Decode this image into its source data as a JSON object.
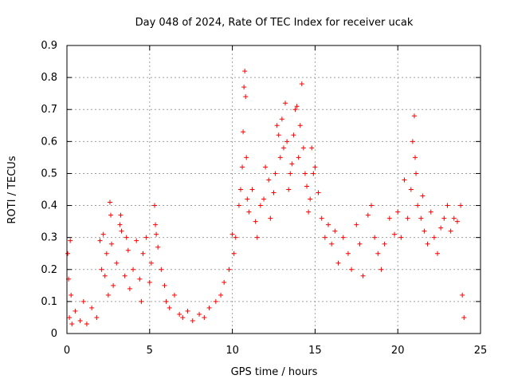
{
  "chart_data": {
    "type": "scatter",
    "title": "Day 048 of 2024, Rate Of TEC Index for receiver ucak",
    "xlabel": "GPS time / hours",
    "ylabel": "ROTI / TECUs",
    "xlim": [
      0,
      25
    ],
    "ylim": [
      0,
      0.9
    ],
    "xticks": [
      0,
      5,
      10,
      15,
      20,
      25
    ],
    "yticks": [
      0,
      0.1,
      0.2,
      0.3,
      0.4,
      0.5,
      0.6,
      0.7,
      0.8,
      0.9
    ],
    "grid": true,
    "marker": "+",
    "color": "#ff0000",
    "series": [
      {
        "points": [
          [
            0.05,
            0.25
          ],
          [
            0.1,
            0.17
          ],
          [
            0.15,
            0.05
          ],
          [
            0.2,
            0.29
          ],
          [
            0.25,
            0.12
          ],
          [
            0.3,
            0.03
          ],
          [
            0.5,
            0.07
          ],
          [
            0.8,
            0.04
          ],
          [
            1.0,
            0.1
          ],
          [
            1.2,
            0.03
          ],
          [
            1.5,
            0.08
          ],
          [
            1.8,
            0.05
          ],
          [
            2.0,
            0.29
          ],
          [
            2.1,
            0.2
          ],
          [
            2.2,
            0.31
          ],
          [
            2.3,
            0.18
          ],
          [
            2.4,
            0.25
          ],
          [
            2.5,
            0.12
          ],
          [
            2.6,
            0.41
          ],
          [
            2.65,
            0.37
          ],
          [
            2.7,
            0.28
          ],
          [
            2.8,
            0.15
          ],
          [
            3.0,
            0.22
          ],
          [
            3.2,
            0.34
          ],
          [
            3.25,
            0.37
          ],
          [
            3.3,
            0.32
          ],
          [
            3.5,
            0.18
          ],
          [
            3.6,
            0.3
          ],
          [
            3.7,
            0.26
          ],
          [
            3.8,
            0.14
          ],
          [
            4.0,
            0.2
          ],
          [
            4.2,
            0.29
          ],
          [
            4.4,
            0.17
          ],
          [
            4.5,
            0.1
          ],
          [
            4.6,
            0.25
          ],
          [
            4.8,
            0.3
          ],
          [
            5.0,
            0.16
          ],
          [
            5.1,
            0.22
          ],
          [
            5.3,
            0.4
          ],
          [
            5.35,
            0.34
          ],
          [
            5.4,
            0.31
          ],
          [
            5.5,
            0.27
          ],
          [
            5.7,
            0.2
          ],
          [
            5.9,
            0.15
          ],
          [
            6.0,
            0.1
          ],
          [
            6.2,
            0.08
          ],
          [
            6.5,
            0.12
          ],
          [
            6.8,
            0.06
          ],
          [
            7.0,
            0.05
          ],
          [
            7.3,
            0.07
          ],
          [
            7.6,
            0.04
          ],
          [
            8.0,
            0.06
          ],
          [
            8.3,
            0.05
          ],
          [
            8.6,
            0.08
          ],
          [
            9.0,
            0.1
          ],
          [
            9.3,
            0.12
          ],
          [
            9.5,
            0.16
          ],
          [
            9.8,
            0.2
          ],
          [
            10.0,
            0.31
          ],
          [
            10.1,
            0.25
          ],
          [
            10.2,
            0.3
          ],
          [
            10.4,
            0.4
          ],
          [
            10.5,
            0.45
          ],
          [
            10.6,
            0.52
          ],
          [
            10.65,
            0.63
          ],
          [
            10.7,
            0.77
          ],
          [
            10.75,
            0.82
          ],
          [
            10.8,
            0.74
          ],
          [
            10.85,
            0.55
          ],
          [
            10.9,
            0.42
          ],
          [
            11.0,
            0.38
          ],
          [
            11.2,
            0.45
          ],
          [
            11.4,
            0.35
          ],
          [
            11.5,
            0.3
          ],
          [
            11.7,
            0.4
          ],
          [
            11.9,
            0.42
          ],
          [
            12.0,
            0.52
          ],
          [
            12.2,
            0.48
          ],
          [
            12.3,
            0.36
          ],
          [
            12.5,
            0.44
          ],
          [
            12.6,
            0.5
          ],
          [
            12.7,
            0.65
          ],
          [
            12.8,
            0.62
          ],
          [
            12.9,
            0.55
          ],
          [
            13.0,
            0.67
          ],
          [
            13.1,
            0.58
          ],
          [
            13.2,
            0.72
          ],
          [
            13.3,
            0.6
          ],
          [
            13.4,
            0.45
          ],
          [
            13.5,
            0.5
          ],
          [
            13.6,
            0.53
          ],
          [
            13.7,
            0.62
          ],
          [
            13.8,
            0.7
          ],
          [
            13.9,
            0.71
          ],
          [
            14.0,
            0.55
          ],
          [
            14.1,
            0.65
          ],
          [
            14.2,
            0.78
          ],
          [
            14.3,
            0.58
          ],
          [
            14.4,
            0.5
          ],
          [
            14.5,
            0.46
          ],
          [
            14.6,
            0.38
          ],
          [
            14.7,
            0.42
          ],
          [
            14.8,
            0.58
          ],
          [
            14.9,
            0.5
          ],
          [
            15.0,
            0.52
          ],
          [
            15.2,
            0.44
          ],
          [
            15.4,
            0.36
          ],
          [
            15.6,
            0.3
          ],
          [
            15.8,
            0.34
          ],
          [
            16.0,
            0.28
          ],
          [
            16.2,
            0.32
          ],
          [
            16.4,
            0.22
          ],
          [
            16.7,
            0.3
          ],
          [
            17.0,
            0.25
          ],
          [
            17.2,
            0.2
          ],
          [
            17.5,
            0.34
          ],
          [
            17.7,
            0.28
          ],
          [
            17.9,
            0.18
          ],
          [
            18.2,
            0.37
          ],
          [
            18.4,
            0.4
          ],
          [
            18.6,
            0.3
          ],
          [
            18.8,
            0.25
          ],
          [
            19.0,
            0.2
          ],
          [
            19.2,
            0.28
          ],
          [
            19.5,
            0.36
          ],
          [
            19.8,
            0.31
          ],
          [
            20.0,
            0.38
          ],
          [
            20.2,
            0.3
          ],
          [
            20.4,
            0.48
          ],
          [
            20.6,
            0.36
          ],
          [
            20.8,
            0.45
          ],
          [
            20.9,
            0.6
          ],
          [
            21.0,
            0.68
          ],
          [
            21.05,
            0.55
          ],
          [
            21.1,
            0.5
          ],
          [
            21.2,
            0.4
          ],
          [
            21.4,
            0.36
          ],
          [
            21.5,
            0.43
          ],
          [
            21.6,
            0.32
          ],
          [
            21.8,
            0.28
          ],
          [
            22.0,
            0.38
          ],
          [
            22.2,
            0.3
          ],
          [
            22.4,
            0.25
          ],
          [
            22.6,
            0.33
          ],
          [
            22.8,
            0.36
          ],
          [
            23.0,
            0.4
          ],
          [
            23.2,
            0.32
          ],
          [
            23.4,
            0.36
          ],
          [
            23.6,
            0.35
          ],
          [
            23.8,
            0.4
          ],
          [
            23.9,
            0.12
          ],
          [
            24.0,
            0.05
          ]
        ]
      }
    ]
  }
}
